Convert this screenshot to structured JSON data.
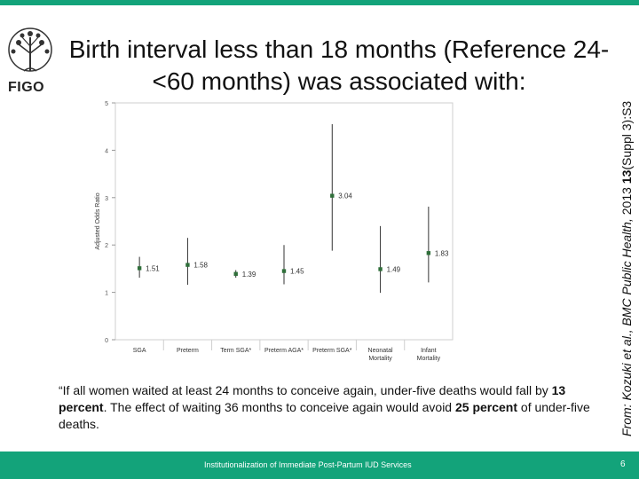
{
  "slide": {
    "title": "Birth interval less than 18 months (Reference 24-<60 months)  was associated with:",
    "logo_text": "FIGO",
    "citation_prefix": "From: Kozuki et al., BMC Public Health, ",
    "citation_year": "2013 ",
    "citation_volume": "13",
    "citation_suffix": "(Suppl 3):S3",
    "quote_part1": "“If all women waited at least 24 months to conceive again, under-five deaths would fall by ",
    "quote_bold1": "13 percent",
    "quote_part2": ". The effect of waiting 36 months to conceive again would avoid ",
    "quote_bold2": "25 percent",
    "quote_part3": " of under-five deaths.",
    "footer": "Institutionalization of Immediate Post-Partum IUD Services",
    "page_number": "6",
    "colors": {
      "accent": "#13a37a",
      "marker": "#2f6f3a"
    }
  },
  "chart_data": {
    "type": "scatter",
    "ylabel": "Adjusted Odds Ratio",
    "ylim": [
      0,
      5
    ],
    "yticks": [
      0,
      1,
      2,
      3,
      4,
      5
    ],
    "categories": [
      [
        "SGA"
      ],
      [
        "Preterm"
      ],
      [
        "Term SGA*"
      ],
      [
        "Preterm AGA*"
      ],
      [
        "Preterm SGA*"
      ],
      [
        "Neonatal",
        "Mortality"
      ],
      [
        "Infant",
        "Mortality"
      ]
    ],
    "values": [
      1.51,
      1.58,
      1.39,
      1.45,
      3.04,
      1.49,
      1.83
    ],
    "value_labels": [
      "1.51",
      "1.58",
      "1.39",
      "1.45",
      "3.04",
      "1.49",
      "1.83"
    ],
    "ci_low": [
      1.31,
      1.16,
      1.31,
      1.17,
      1.88,
      0.99,
      1.21
    ],
    "ci_high": [
      1.75,
      2.15,
      1.47,
      2.0,
      4.55,
      2.4,
      2.81
    ],
    "grid": false,
    "legend": "none"
  }
}
